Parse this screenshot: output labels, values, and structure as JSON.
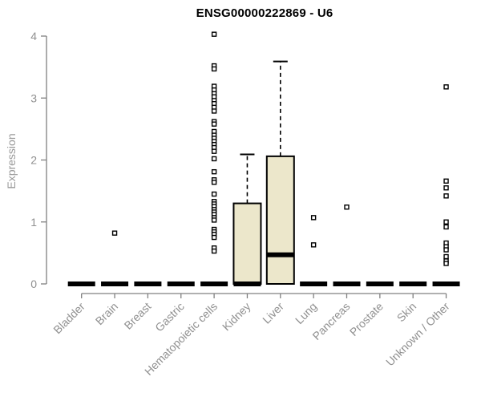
{
  "chart_data": {
    "type": "boxplot",
    "title": "ENSG00000222869 - U6",
    "ylabel": "Expression",
    "xlabel": "",
    "ylim": [
      0,
      4
    ],
    "yticks": [
      0,
      1,
      2,
      3,
      4
    ],
    "grid": false,
    "legend": false,
    "categories": [
      "Bladder",
      "Brain",
      "Breast",
      "Gastric",
      "Hematopoietic cells",
      "Kidney",
      "Liver",
      "Lung",
      "Pancreas",
      "Prostate",
      "Skin",
      "Unknown / Other"
    ],
    "boxes": [
      {
        "category": "Bladder",
        "whisker_low": 0,
        "q1": 0,
        "median": 0,
        "q3": 0,
        "whisker_high": 0,
        "outliers": []
      },
      {
        "category": "Brain",
        "whisker_low": 0,
        "q1": 0,
        "median": 0,
        "q3": 0,
        "whisker_high": 0,
        "outliers": [
          0.82
        ]
      },
      {
        "category": "Breast",
        "whisker_low": 0,
        "q1": 0,
        "median": 0,
        "q3": 0,
        "whisker_high": 0,
        "outliers": []
      },
      {
        "category": "Gastric",
        "whisker_low": 0,
        "q1": 0,
        "median": 0,
        "q3": 0,
        "whisker_high": 0,
        "outliers": []
      },
      {
        "category": "Hematopoietic cells",
        "whisker_low": 0,
        "q1": 0,
        "median": 0,
        "q3": 0,
        "whisker_high": 0,
        "outliers": [
          4.03,
          3.52,
          3.47,
          3.19,
          3.13,
          3.07,
          3.02,
          2.96,
          2.91,
          2.85,
          2.79,
          2.62,
          2.58,
          2.46,
          2.4,
          2.35,
          2.3,
          2.25,
          2.2,
          2.14,
          2.02,
          1.81,
          1.68,
          1.64,
          1.45,
          1.33,
          1.29,
          1.25,
          1.2,
          1.16,
          1.12,
          1.07,
          1.03,
          0.88,
          0.84,
          0.8,
          0.75,
          0.58,
          0.53
        ]
      },
      {
        "category": "Kidney",
        "whisker_low": 0,
        "q1": 0,
        "median": 0,
        "q3": 1.3,
        "whisker_high": 2.09,
        "outliers": []
      },
      {
        "category": "Liver",
        "whisker_low": 0,
        "q1": 0,
        "median": 0.47,
        "q3": 2.06,
        "whisker_high": 3.59,
        "outliers": []
      },
      {
        "category": "Lung",
        "whisker_low": 0,
        "q1": 0,
        "median": 0,
        "q3": 0,
        "whisker_high": 0,
        "outliers": [
          1.07,
          0.63
        ]
      },
      {
        "category": "Pancreas",
        "whisker_low": 0,
        "q1": 0,
        "median": 0,
        "q3": 0,
        "whisker_high": 0,
        "outliers": [
          1.24
        ]
      },
      {
        "category": "Prostate",
        "whisker_low": 0,
        "q1": 0,
        "median": 0,
        "q3": 0,
        "whisker_high": 0,
        "outliers": []
      },
      {
        "category": "Skin",
        "whisker_low": 0,
        "q1": 0,
        "median": 0,
        "q3": 0,
        "whisker_high": 0,
        "outliers": []
      },
      {
        "category": "Unknown / Other",
        "whisker_low": 0,
        "q1": 0,
        "median": 0,
        "q3": 0,
        "whisker_high": 0,
        "outliers": [
          3.18,
          1.66,
          1.55,
          1.42,
          1.0,
          0.92,
          0.66,
          0.6,
          0.55,
          0.44,
          0.37,
          0.33
        ]
      }
    ],
    "colors": {
      "box_fill": "#ECE7CB",
      "box_border": "#000000",
      "median": "#000000",
      "outlier_stroke": "#000000",
      "axis": "#808080",
      "tick_label": "#909090",
      "title": "#000000"
    }
  }
}
